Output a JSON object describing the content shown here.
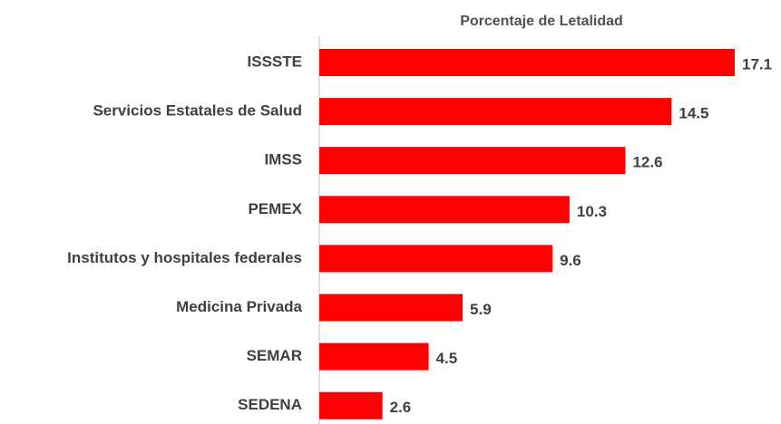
{
  "chart_data": {
    "type": "barh",
    "title": "Porcentaje de Letalidad",
    "categories": [
      "ISSSTE",
      "Servicios Estatales de Salud",
      "IMSS",
      "PEMEX",
      "Institutos y hospitales federales",
      "Medicina Privada",
      "SEMAR",
      "SEDENA"
    ],
    "values": [
      17.1,
      14.5,
      12.6,
      10.3,
      9.6,
      5.9,
      4.5,
      2.6
    ],
    "color": "#ff0000"
  }
}
